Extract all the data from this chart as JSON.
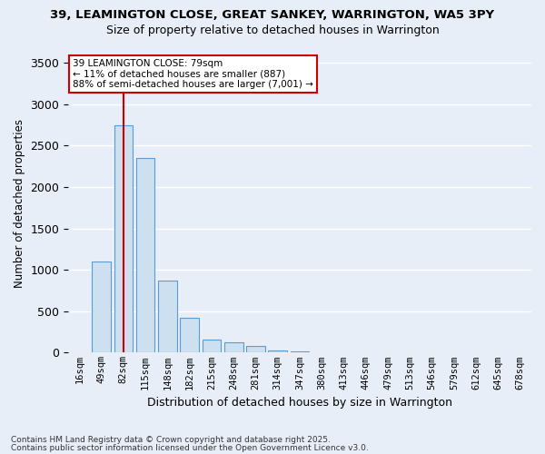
{
  "title1": "39, LEAMINGTON CLOSE, GREAT SANKEY, WARRINGTON, WA5 3PY",
  "title2": "Size of property relative to detached houses in Warrington",
  "xlabel": "Distribution of detached houses by size in Warrington",
  "ylabel": "Number of detached properties",
  "bins": [
    "16sqm",
    "49sqm",
    "82sqm",
    "115sqm",
    "148sqm",
    "182sqm",
    "215sqm",
    "248sqm",
    "281sqm",
    "314sqm",
    "347sqm",
    "380sqm",
    "413sqm",
    "446sqm",
    "479sqm",
    "513sqm",
    "546sqm",
    "579sqm",
    "612sqm",
    "645sqm",
    "678sqm"
  ],
  "values": [
    5,
    1100,
    2750,
    2350,
    870,
    420,
    160,
    120,
    80,
    30,
    15,
    5,
    2,
    1,
    1,
    0,
    0,
    0,
    0,
    0,
    0
  ],
  "bar_color": "#cce0f0",
  "bar_edge_color": "#5b9bd5",
  "vline_x_index": 2,
  "vline_color": "#cc0000",
  "annotation_title": "39 LEAMINGTON CLOSE: 79sqm",
  "annotation_line2": "← 11% of detached houses are smaller (887)",
  "annotation_line3": "88% of semi-detached houses are larger (7,001) →",
  "annotation_box_color": "#cc0000",
  "ylim": [
    0,
    3600
  ],
  "yticks": [
    0,
    500,
    1000,
    1500,
    2000,
    2500,
    3000,
    3500
  ],
  "footer1": "Contains HM Land Registry data © Crown copyright and database right 2025.",
  "footer2": "Contains public sector information licensed under the Open Government Licence v3.0.",
  "bg_color": "#e8eef8",
  "grid_color": "#ffffff"
}
